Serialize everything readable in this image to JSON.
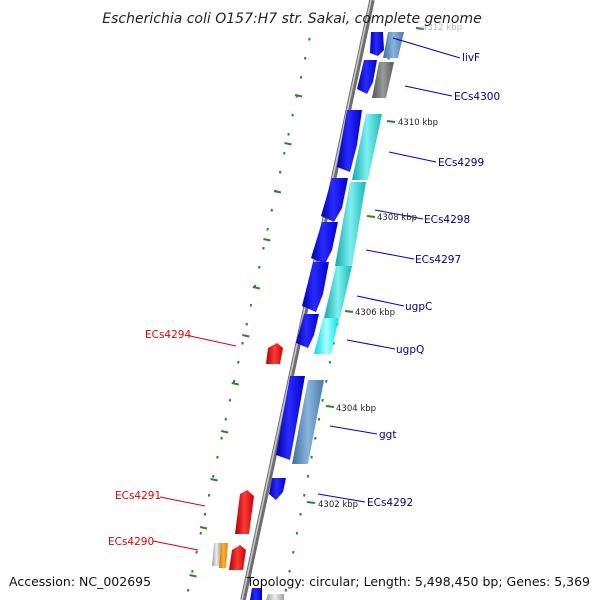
{
  "title": "Escherichia coli O157:H7 str. Sakai, complete genome",
  "accession": "Accession: NC_002695",
  "topology": "Topology: circular; Length: 5,498,450 bp; Genes: 5,369",
  "colors": {
    "backbone": "#8a8a8a",
    "forward_label": "#00008b",
    "reverse_label": "#dd0000",
    "dotted_track": "#228b22",
    "tick_mark": "#228b22"
  },
  "ticks": [
    {
      "label": "4312 kbp"
    },
    {
      "label": "4310 kbp"
    },
    {
      "label": "4308 kbp"
    },
    {
      "label": "4306 kbp"
    },
    {
      "label": "4304 kbp"
    },
    {
      "label": "4302 kbp"
    }
  ],
  "forward_labels": [
    {
      "text": "livF"
    },
    {
      "text": "ECs4300"
    },
    {
      "text": "ECs4299"
    },
    {
      "text": "ECs4298"
    },
    {
      "text": "ECs4297"
    },
    {
      "text": "ugpC"
    },
    {
      "text": "ugpQ"
    },
    {
      "text": "ggt"
    },
    {
      "text": "ECs4292"
    }
  ],
  "reverse_labels": [
    {
      "text": "ECs4294"
    },
    {
      "text": "ECs4291"
    },
    {
      "text": "ECs4290"
    }
  ]
}
